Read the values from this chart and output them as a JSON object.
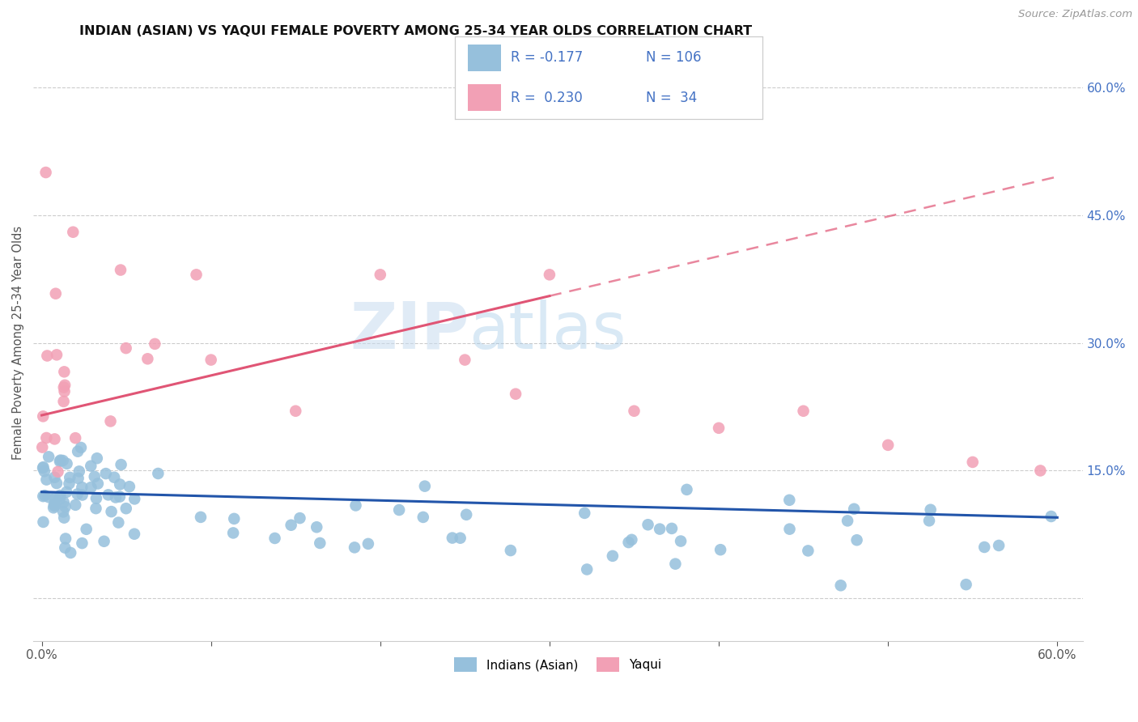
{
  "title": "INDIAN (ASIAN) VS YAQUI FEMALE POVERTY AMONG 25-34 YEAR OLDS CORRELATION CHART",
  "source": "Source: ZipAtlas.com",
  "ylabel": "Female Poverty Among 25-34 Year Olds",
  "xlim": [
    -0.005,
    0.615
  ],
  "ylim": [
    -0.05,
    0.65
  ],
  "xtick_vals": [
    0.0,
    0.1,
    0.2,
    0.3,
    0.4,
    0.5,
    0.6
  ],
  "xticklabels": [
    "0.0%",
    "",
    "",
    "",
    "",
    "",
    "60.0%"
  ],
  "ytick_positions": [
    0.0,
    0.15,
    0.3,
    0.45,
    0.6
  ],
  "yticklabels_right": [
    "",
    "15.0%",
    "30.0%",
    "45.0%",
    "60.0%"
  ],
  "color_indian": "#96C0DC",
  "color_yaqui": "#F2A0B5",
  "color_trend_indian": "#2255AA",
  "color_trend_yaqui": "#E05575",
  "background_color": "#FFFFFF",
  "grid_color": "#CCCCCC",
  "watermark_color": "#D8EAF5",
  "title_color": "#111111",
  "tick_color": "#555555",
  "right_tick_color": "#4472C4",
  "source_color": "#999999",
  "legend_box_color": "#EEEEEE",
  "legend_text_color": "#4472C4",
  "indian_trend_start_x": 0.0,
  "indian_trend_end_x": 0.6,
  "indian_trend_start_y": 0.125,
  "indian_trend_end_y": 0.095,
  "yaqui_trend_solid_start_x": 0.0,
  "yaqui_trend_solid_end_x": 0.3,
  "yaqui_trend_solid_start_y": 0.215,
  "yaqui_trend_solid_end_y": 0.355,
  "yaqui_trend_dash_start_x": 0.3,
  "yaqui_trend_dash_end_x": 0.6,
  "yaqui_trend_dash_start_y": 0.355,
  "yaqui_trend_dash_end_y": 0.495
}
